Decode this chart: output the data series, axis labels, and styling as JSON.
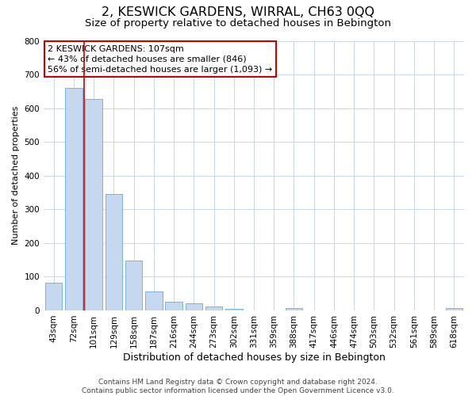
{
  "title": "2, KESWICK GARDENS, WIRRAL, CH63 0QQ",
  "subtitle": "Size of property relative to detached houses in Bebington",
  "xlabel": "Distribution of detached houses by size in Bebington",
  "ylabel": "Number of detached properties",
  "categories": [
    "43sqm",
    "72sqm",
    "101sqm",
    "129sqm",
    "158sqm",
    "187sqm",
    "216sqm",
    "244sqm",
    "273sqm",
    "302sqm",
    "331sqm",
    "359sqm",
    "388sqm",
    "417sqm",
    "446sqm",
    "474sqm",
    "503sqm",
    "532sqm",
    "561sqm",
    "589sqm",
    "618sqm"
  ],
  "values": [
    82,
    660,
    628,
    345,
    147,
    57,
    25,
    20,
    12,
    5,
    0,
    0,
    8,
    0,
    0,
    0,
    0,
    0,
    0,
    0,
    8
  ],
  "bar_color": "#c5d8ef",
  "bar_edge_color": "#6aaad4",
  "highlight_line_color": "#cc0000",
  "annotation_line1": "2 KESWICK GARDENS: 107sqm",
  "annotation_line2": "← 43% of detached houses are smaller (846)",
  "annotation_line3": "56% of semi-detached houses are larger (1,093) →",
  "annotation_box_color": "#cc0000",
  "ylim": [
    0,
    800
  ],
  "yticks": [
    0,
    100,
    200,
    300,
    400,
    500,
    600,
    700,
    800
  ],
  "grid_color": "#c8d8e8",
  "background_color": "#ffffff",
  "footer": "Contains HM Land Registry data © Crown copyright and database right 2024.\nContains public sector information licensed under the Open Government Licence v3.0.",
  "title_fontsize": 11.5,
  "subtitle_fontsize": 9.5,
  "xlabel_fontsize": 9,
  "ylabel_fontsize": 8,
  "tick_fontsize": 7.5,
  "annotation_fontsize": 8,
  "footer_fontsize": 6.5
}
